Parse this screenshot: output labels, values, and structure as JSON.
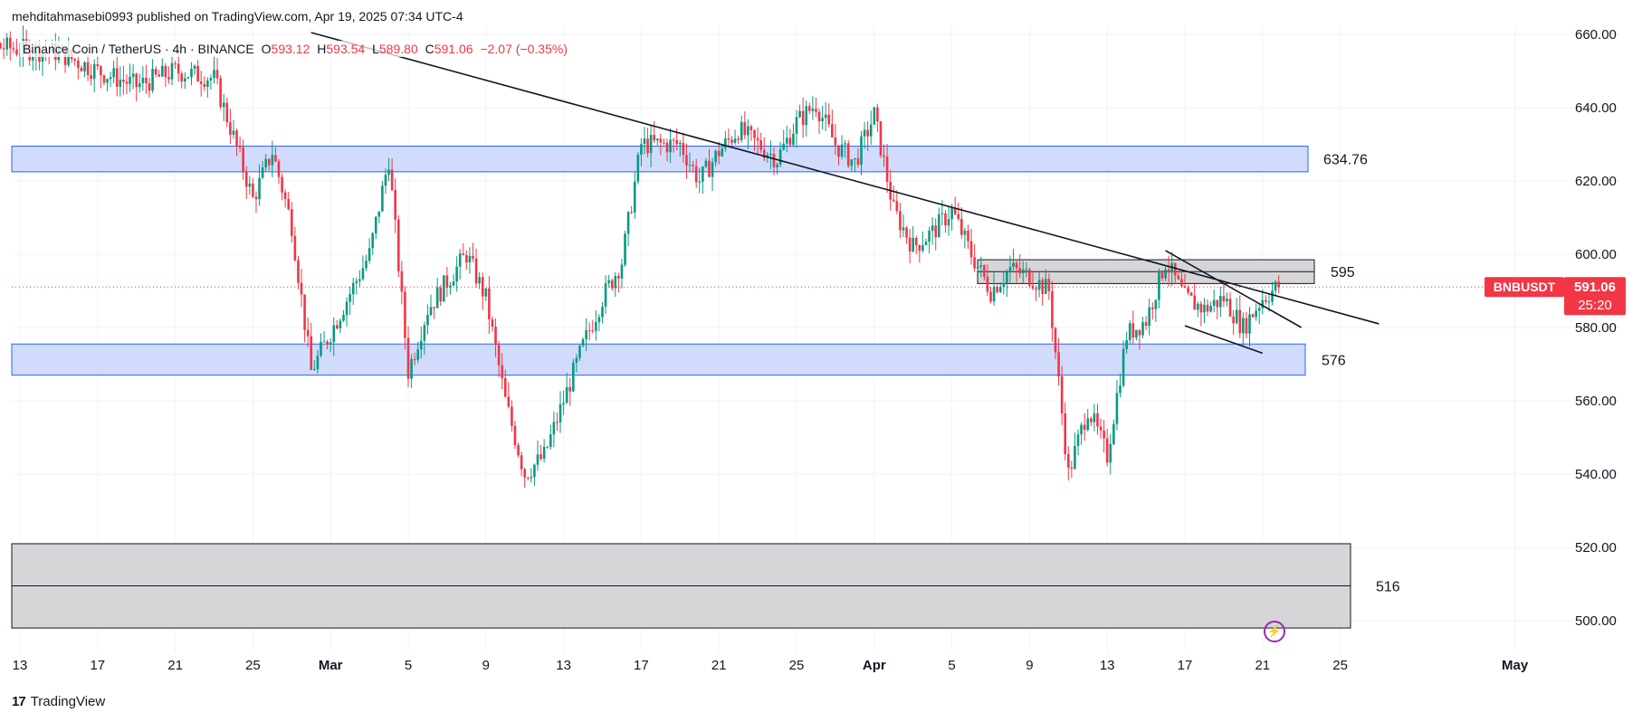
{
  "header": {
    "published": "mehditahmasebi0993 published on TradingView.com, Apr 19, 2025 07:34 UTC-4"
  },
  "symbol": {
    "name": "Binance Coin / TetherUS · 4h · BINANCE",
    "open_label": "O",
    "open": "593.12",
    "high_label": "H",
    "high": "593.54",
    "low_label": "L",
    "low": "589.80",
    "close_label": "C",
    "close": "591.06",
    "change": "−2.07 (−0.35%)"
  },
  "price_badge": {
    "ticker": "BNBUSDT",
    "price": "591.06",
    "countdown": "25:20",
    "color": "#f23645"
  },
  "footer": {
    "brand": "TradingView",
    "logo_icon": "tradingview-logo-icon"
  },
  "alert_icon": "lightning-icon",
  "colors": {
    "up": "#089981",
    "down": "#f23645",
    "zone_blue_fill": "#d1dcfd",
    "zone_blue_stroke": "#2962ff",
    "zone_gray_fill": "#d6d6d8",
    "zone_gray_stroke": "#131722",
    "trendline": "#131722"
  },
  "chart_data": {
    "type": "candlestick",
    "title": "Binance Coin / TetherUS · 4h · BINANCE",
    "y_axis": {
      "ticks": [
        "660.00",
        "640.00",
        "620.00",
        "600.00",
        "580.00",
        "560.00",
        "540.00",
        "520.00",
        "500.00"
      ],
      "range": [
        496,
        662
      ]
    },
    "x_axis": {
      "ticks": [
        "13",
        "17",
        "21",
        "25",
        "Mar",
        "5",
        "9",
        "13",
        "17",
        "21",
        "25",
        "Apr",
        "5",
        "9",
        "13",
        "17",
        "21",
        "25",
        "May"
      ]
    },
    "zones": [
      {
        "kind": "resistance",
        "label": "634.76",
        "low": 622.5,
        "high": 629.5,
        "style": "blue"
      },
      {
        "kind": "resistance",
        "label": "595",
        "low": 592.0,
        "high": 598.5,
        "style": "gray"
      },
      {
        "kind": "support",
        "label": "576",
        "low": 567.0,
        "high": 575.5,
        "style": "blue"
      },
      {
        "kind": "support",
        "label": "516",
        "low": 498.0,
        "high": 521.0,
        "style": "gray"
      }
    ],
    "trendlines": [
      {
        "name": "main-descending",
        "from": [
          "Feb 28",
          660.5
        ],
        "to": [
          "Apr 23",
          581.0
        ]
      },
      {
        "name": "wedge-upper",
        "from": [
          "Apr 12",
          601.0
        ],
        "to": [
          "Apr 19",
          580.0
        ]
      },
      {
        "name": "wedge-lower",
        "from": [
          "Apr 13",
          580.5
        ],
        "to": [
          "Apr 17",
          573.0
        ]
      }
    ],
    "current_price": 591.06,
    "series_shape": [
      [
        "Feb 9",
        658
      ],
      [
        "Feb 15",
        655
      ],
      [
        "Feb 17",
        650
      ],
      [
        "Feb 19",
        646
      ],
      [
        "Feb 21",
        650
      ],
      [
        "Feb 23",
        648
      ],
      [
        "Feb 24",
        632
      ],
      [
        "Feb 25",
        615
      ],
      [
        "Feb 26",
        628
      ],
      [
        "Feb 27",
        608
      ],
      [
        "Feb 28",
        568
      ],
      [
        "Mar 2",
        600
      ],
      [
        "Mar 3",
        626
      ],
      [
        "Mar 4",
        568
      ],
      [
        "Mar 5",
        585
      ],
      [
        "Mar 7",
        600
      ],
      [
        "Mar 8",
        588
      ],
      [
        "Mar 9",
        560
      ],
      [
        "Mar 10",
        540
      ],
      [
        "Mar 11",
        545
      ],
      [
        "Mar 12",
        560
      ],
      [
        "Mar 13",
        575
      ],
      [
        "Mar 14",
        588
      ],
      [
        "Mar 15",
        598
      ],
      [
        "Mar 16",
        630
      ],
      [
        "Mar 18",
        630
      ],
      [
        "Mar 19",
        620
      ],
      [
        "Mar 20",
        628
      ],
      [
        "Mar 21",
        634
      ],
      [
        "Mar 23",
        626
      ],
      [
        "Mar 24",
        636
      ],
      [
        "Mar 25",
        641
      ],
      [
        "Mar 26",
        630
      ],
      [
        "Mar 27",
        625
      ],
      [
        "Mar 28",
        638
      ],
      [
        "Mar 29",
        612
      ],
      [
        "Mar 30",
        602
      ],
      [
        "Mar 31",
        606
      ],
      [
        "Apr 1",
        612
      ],
      [
        "Apr 2",
        600
      ],
      [
        "Apr 3",
        590
      ],
      [
        "Apr 4",
        596
      ],
      [
        "Apr 5",
        594
      ],
      [
        "Apr 6",
        590
      ],
      [
        "Apr 7",
        540
      ],
      [
        "Apr 8",
        558
      ],
      [
        "Apr 9",
        545
      ],
      [
        "Apr 10",
        578
      ],
      [
        "Apr 11",
        582
      ],
      [
        "Apr 12",
        598
      ],
      [
        "Apr 13",
        588
      ],
      [
        "Apr 14",
        585
      ],
      [
        "Apr 15",
        588
      ],
      [
        "Apr 16",
        580
      ],
      [
        "Apr 17",
        588
      ],
      [
        "Apr 18",
        592
      ],
      [
        "Apr 19",
        591
      ]
    ]
  }
}
